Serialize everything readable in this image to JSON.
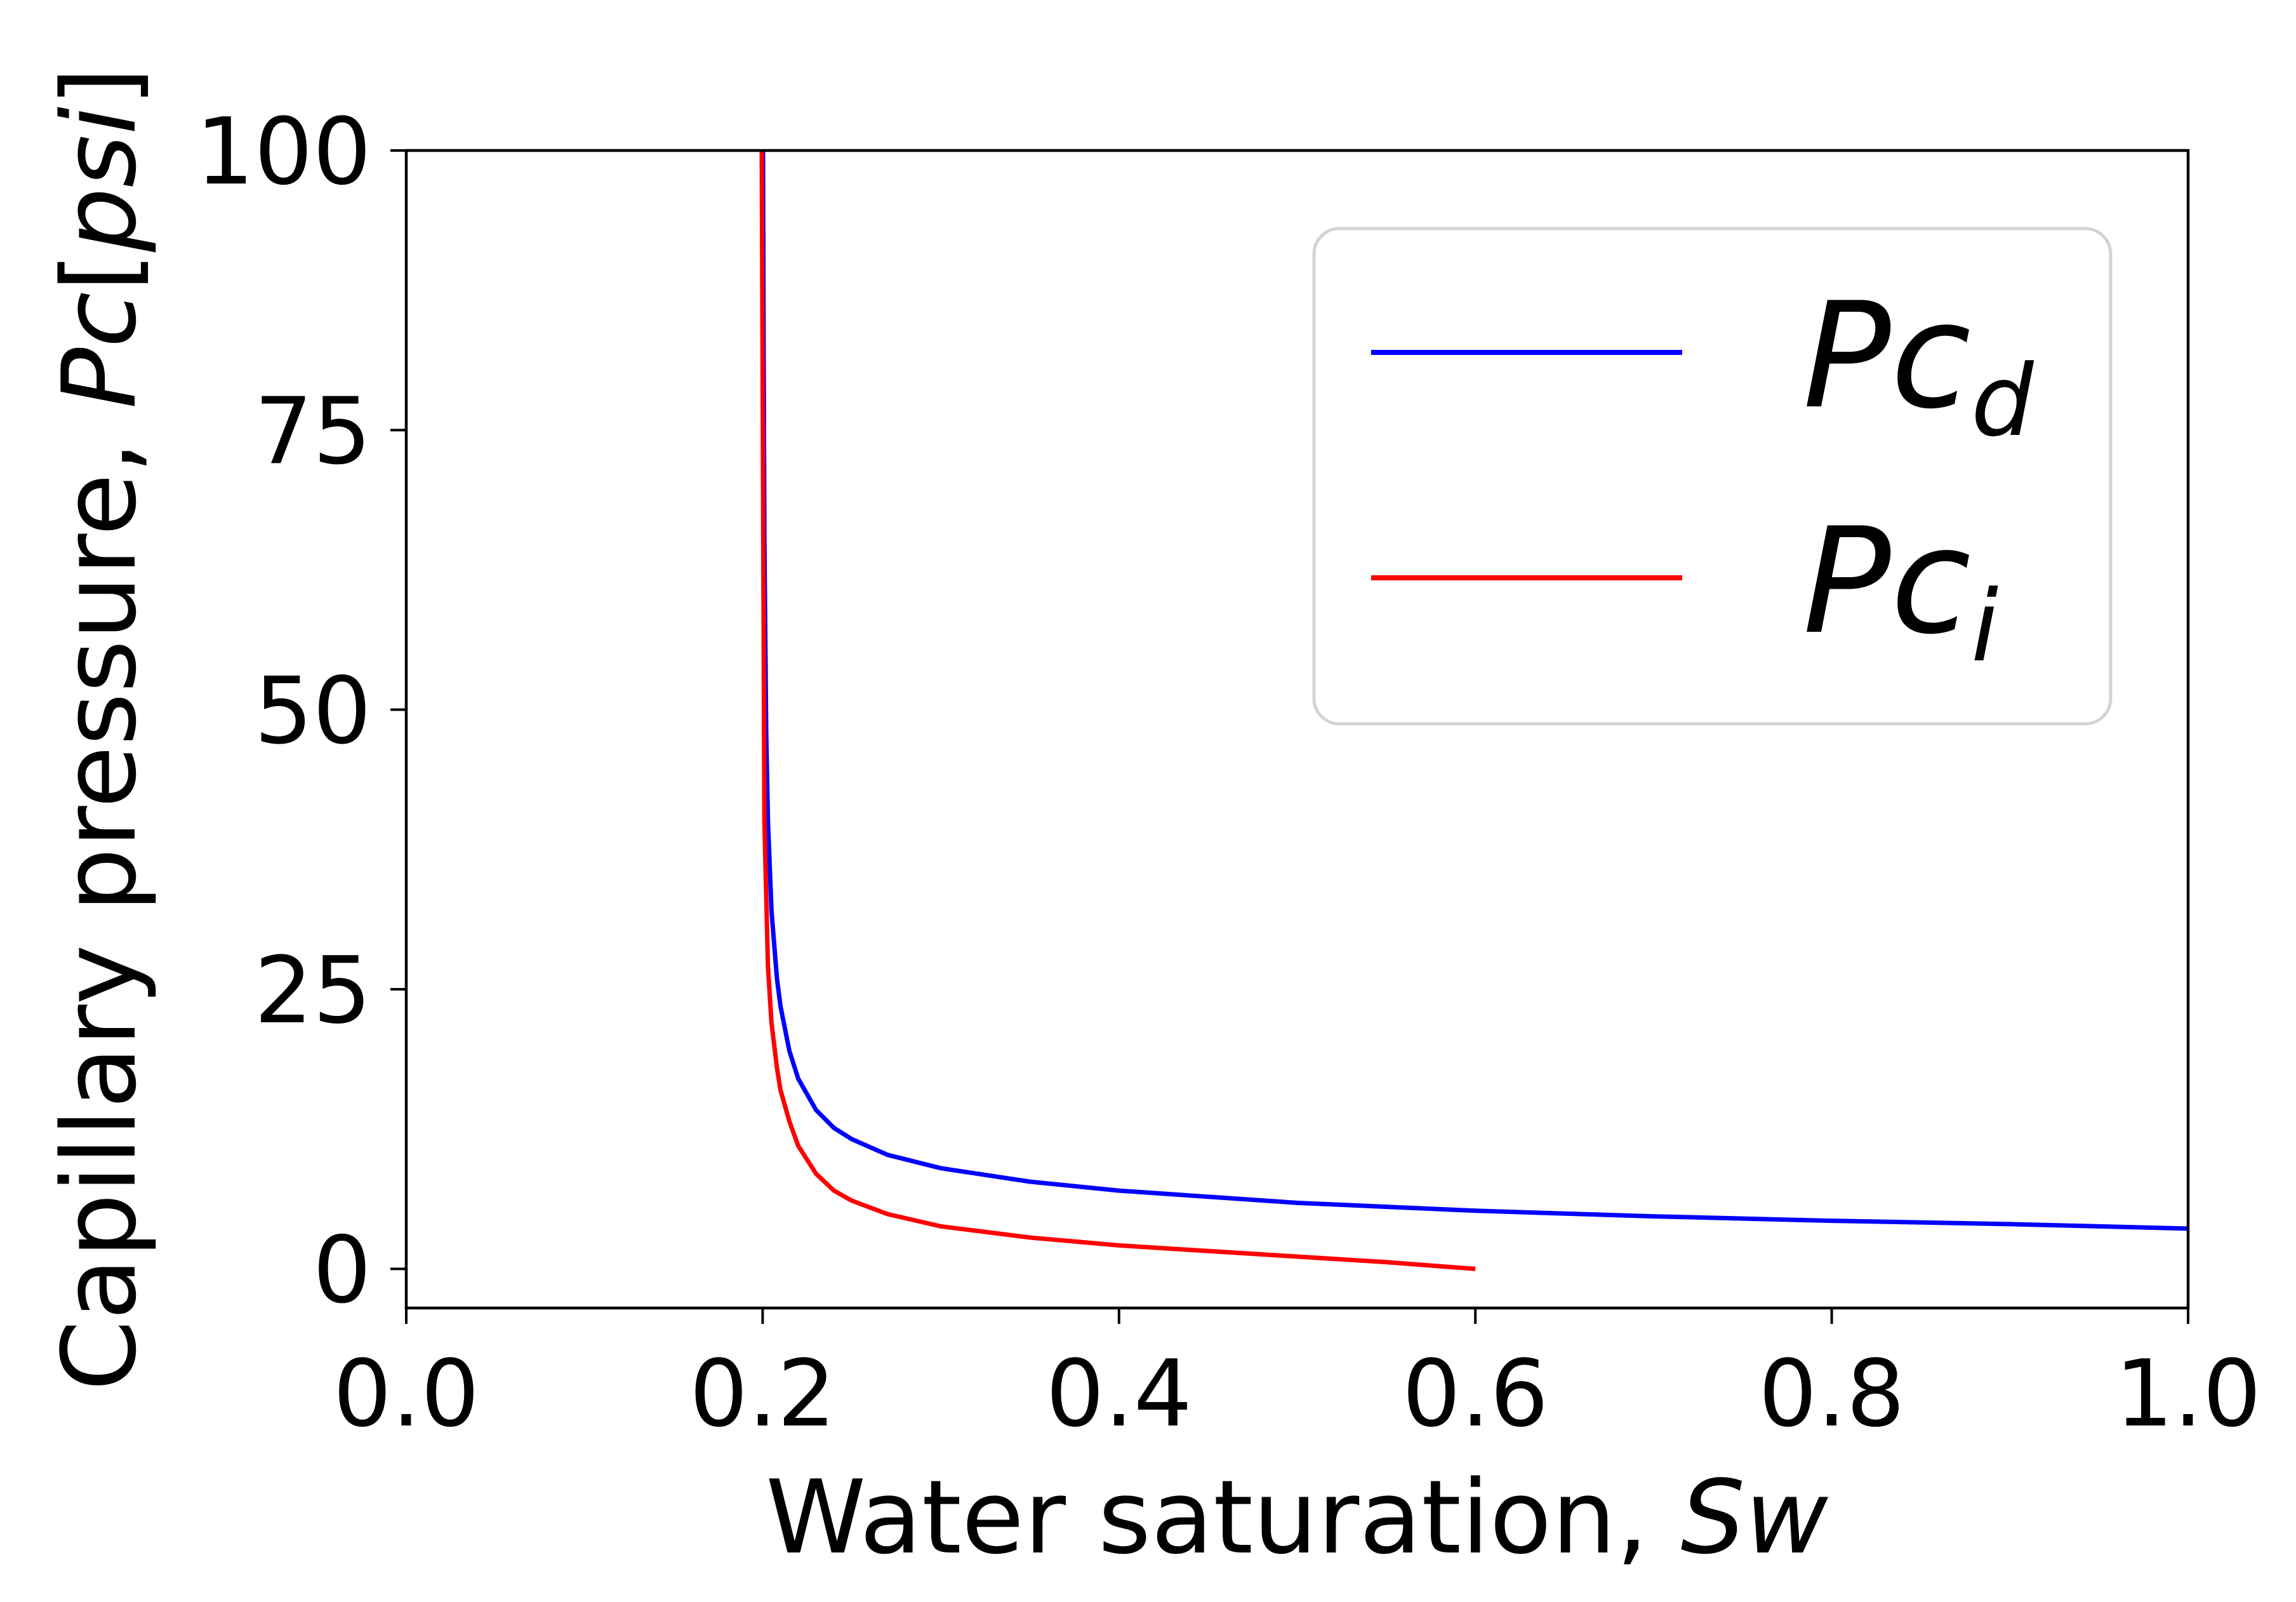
{
  "chart_data": {
    "type": "line",
    "title": "",
    "xlabel": "Water saturation, ",
    "xlabel_var": "Sw",
    "ylabel": "Capillary pressure, ",
    "ylabel_var": "Pc",
    "ylabel_unit_open": "[",
    "ylabel_unit": "psi",
    "ylabel_unit_close": "]",
    "xlim": [
      0.0,
      1.0
    ],
    "ylim": [
      -3.5,
      100
    ],
    "x_ticks": [
      0.0,
      0.2,
      0.4,
      0.6,
      0.8,
      1.0
    ],
    "x_tick_labels": [
      "0.0",
      "0.2",
      "0.4",
      "0.6",
      "0.8",
      "1.0"
    ],
    "y_ticks": [
      0,
      25,
      50,
      75,
      100
    ],
    "y_tick_labels": [
      "0",
      "25",
      "50",
      "75",
      "100"
    ],
    "grid": false,
    "legend_placement": "upper-right",
    "series": [
      {
        "name": "Pc",
        "name_sub": "d",
        "color": "#0000ff",
        "x": [
          0.2002,
          0.2005,
          0.201,
          0.202,
          0.203,
          0.205,
          0.208,
          0.21,
          0.215,
          0.22,
          0.23,
          0.24,
          0.25,
          0.27,
          0.3,
          0.35,
          0.4,
          0.5,
          0.6,
          0.7,
          0.8,
          0.9,
          1.0
        ],
        "y": [
          100,
          85,
          65,
          48,
          40,
          32,
          26,
          23.5,
          19.5,
          17,
          14.2,
          12.6,
          11.6,
          10.2,
          9.0,
          7.8,
          7.0,
          5.9,
          5.2,
          4.7,
          4.3,
          4.0,
          3.6
        ]
      },
      {
        "name": "Pc",
        "name_sub": "i",
        "color": "#ff0000",
        "x": [
          0.1995,
          0.2,
          0.201,
          0.203,
          0.205,
          0.208,
          0.21,
          0.215,
          0.22,
          0.23,
          0.24,
          0.25,
          0.27,
          0.3,
          0.35,
          0.4,
          0.45,
          0.5,
          0.55,
          0.6
        ],
        "y": [
          100,
          80,
          40,
          27,
          22,
          18,
          16,
          13.2,
          11,
          8.5,
          7.0,
          6.1,
          4.9,
          3.8,
          2.8,
          2.1,
          1.6,
          1.1,
          0.6,
          0.0
        ]
      }
    ]
  }
}
